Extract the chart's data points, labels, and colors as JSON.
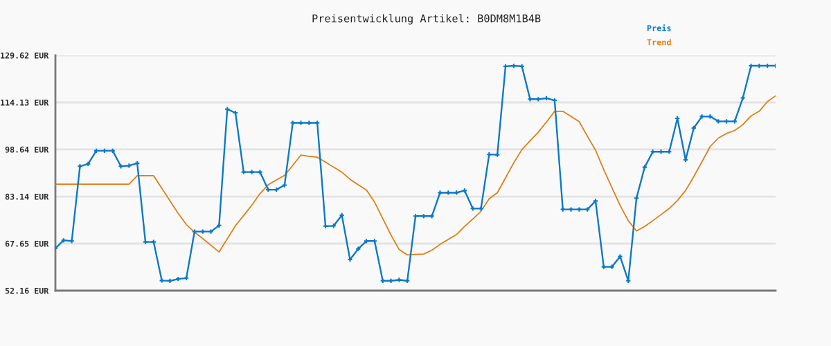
{
  "chart_data": {
    "type": "line",
    "title": "Preisentwicklung Artikel: B0DM8M1B4B",
    "categories": [
      null,
      null,
      null,
      null,
      null,
      null,
      null,
      null,
      null,
      null,
      null,
      null,
      null,
      null,
      null,
      null,
      null,
      null,
      null,
      null,
      null,
      null,
      null,
      null,
      null,
      null,
      null,
      null,
      null,
      null,
      null,
      null,
      null,
      null,
      null,
      null,
      null,
      null,
      null,
      null,
      null,
      null,
      null,
      null,
      null,
      null,
      null,
      null,
      null,
      null,
      null,
      null,
      null,
      null,
      null,
      null,
      null,
      null,
      null,
      null,
      null,
      null,
      null,
      null,
      null,
      null,
      null,
      null,
      null,
      null,
      null,
      null,
      null,
      null,
      null,
      null,
      null,
      null,
      null,
      null,
      null,
      null,
      null,
      null,
      null,
      null,
      null,
      null,
      null
    ],
    "series": [
      {
        "name": "Preis",
        "color": "#0b78c8",
        "values": [
          66.1,
          68.7,
          68.5,
          93.1,
          93.9,
          98.2,
          98.2,
          98.2,
          93.1,
          93.3,
          94.1,
          68.2,
          68.2,
          55.5,
          55.4,
          56.0,
          56.3,
          71.6,
          71.6,
          71.6,
          73.6,
          111.9,
          110.7,
          91.2,
          91.2,
          91.2,
          85.4,
          85.4,
          86.9,
          107.4,
          107.4,
          107.4,
          107.4,
          73.4,
          73.5,
          77.0,
          62.4,
          65.9,
          68.5,
          68.5,
          55.4,
          55.4,
          55.7,
          55.4,
          76.7,
          76.7,
          76.7,
          84.4,
          84.4,
          84.4,
          85.1,
          79.2,
          79.2,
          97.0,
          96.9,
          126.0,
          126.2,
          126.0,
          115.2,
          115.2,
          115.5,
          114.8,
          78.9,
          78.9,
          78.9,
          78.9,
          81.7,
          60.0,
          60.0,
          63.4,
          55.4,
          82.6,
          92.8,
          97.9,
          97.9,
          97.9,
          108.9,
          95.2,
          105.7,
          109.5,
          109.5,
          107.9,
          107.9,
          107.9,
          115.6,
          126.2,
          126.2,
          126.2,
          126.2
        ]
      },
      {
        "name": "Trend",
        "color": "#e07c10",
        "marker": "none",
        "values": [
          87.2,
          87.2,
          87.2,
          87.2,
          87.2,
          87.2,
          87.2,
          87.2,
          87.2,
          87.2,
          90.0,
          90.0,
          90.0,
          85.9,
          81.7,
          77.6,
          73.9,
          71.4,
          69.3,
          67.1,
          64.9,
          69.2,
          73.5,
          76.9,
          80.3,
          84.1,
          87.0,
          88.6,
          90.1,
          93.4,
          96.8,
          96.4,
          96.1,
          94.5,
          92.8,
          91.2,
          88.8,
          87.0,
          85.3,
          81.3,
          75.9,
          70.5,
          65.7,
          63.9,
          64.1,
          64.2,
          65.5,
          67.4,
          69.0,
          70.6,
          73.3,
          75.7,
          78.3,
          82.4,
          84.4,
          89.3,
          94.2,
          98.6,
          101.5,
          104.3,
          107.7,
          111.2,
          111.2,
          109.5,
          107.8,
          103.0,
          98.4,
          92.0,
          86.1,
          80.2,
          75.2,
          71.8,
          73.3,
          75.2,
          77.2,
          79.2,
          81.8,
          85.1,
          89.7,
          94.6,
          99.6,
          102.4,
          103.9,
          104.9,
          106.8,
          109.7,
          111.2,
          114.4,
          116.3
        ]
      }
    ],
    "ylim": [
      52.16,
      129.62
    ],
    "yticks": [
      {
        "value": 52.16,
        "label": "52.16 EUR"
      },
      {
        "value": 67.65,
        "label": "67.65 EUR"
      },
      {
        "value": 83.14,
        "label": "83.14 EUR"
      },
      {
        "value": 98.64,
        "label": "98.64 EUR"
      },
      {
        "value": 114.13,
        "label": "114.13 EUR"
      },
      {
        "value": 129.62,
        "label": "129.62 EUR"
      }
    ],
    "grid": "y",
    "legend": "top right",
    "tick_labels": "y",
    "marker": "cross",
    "line_style": "solid"
  }
}
